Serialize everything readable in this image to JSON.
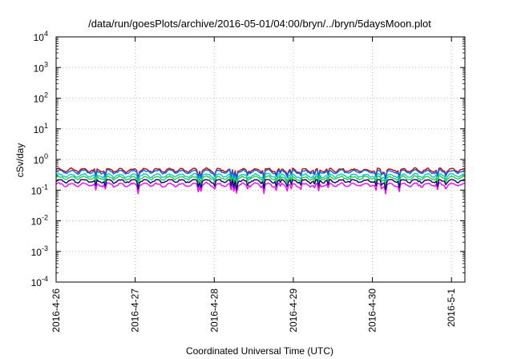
{
  "chart_data": {
    "type": "line",
    "title": "/data/run/goesPlots/archive/2016-05-01/04:00/bryn/../bryn/5daysMoon.plot",
    "xlabel": "Coordinated Universal Time (UTC)",
    "ylabel": "cSv/day",
    "x_range_days": [
      0,
      5.17
    ],
    "x_ticks": [
      {
        "day": 0,
        "label": "2016-4-26"
      },
      {
        "day": 1,
        "label": "2016-4-27"
      },
      {
        "day": 2,
        "label": "2016-4-28"
      },
      {
        "day": 3,
        "label": "2016-4-29"
      },
      {
        "day": 4,
        "label": "2016-4-30"
      },
      {
        "day": 5,
        "label": "2016-5-1"
      }
    ],
    "y_scale": "log",
    "ylim": [
      0.0001,
      10000
    ],
    "y_ticks": [
      {
        "exp": 4,
        "base": "10",
        "sup": "4"
      },
      {
        "exp": 3,
        "base": "10",
        "sup": "3"
      },
      {
        "exp": 2,
        "base": "10",
        "sup": "2"
      },
      {
        "exp": 1,
        "base": "10",
        "sup": "1"
      },
      {
        "exp": 0,
        "base": "10",
        "sup": "0"
      },
      {
        "exp": -1,
        "base": "10",
        "sup": "-1"
      },
      {
        "exp": -2,
        "base": "10",
        "sup": "-2"
      },
      {
        "exp": -3,
        "base": "10",
        "sup": "-3"
      },
      {
        "exp": -4,
        "base": "10",
        "sup": "-4"
      }
    ],
    "grid": true,
    "series": [
      {
        "color": "#ff00ff",
        "values_range": [
          0.05,
          0.2
        ],
        "typical": 0.15
      },
      {
        "color": "#cc0000",
        "values_range": [
          0.15,
          0.6
        ],
        "typical": 0.45
      },
      {
        "color": "#0066ff",
        "values_range": [
          0.12,
          0.5
        ],
        "typical": 0.4
      },
      {
        "color": "#00cccc",
        "values_range": [
          0.12,
          0.35
        ],
        "typical": 0.3
      },
      {
        "color": "#33cc33",
        "values_range": [
          0.12,
          0.3
        ],
        "typical": 0.25
      },
      {
        "color": "#000080",
        "values_range": [
          0.1,
          0.22
        ],
        "typical": 0.2
      }
    ]
  }
}
